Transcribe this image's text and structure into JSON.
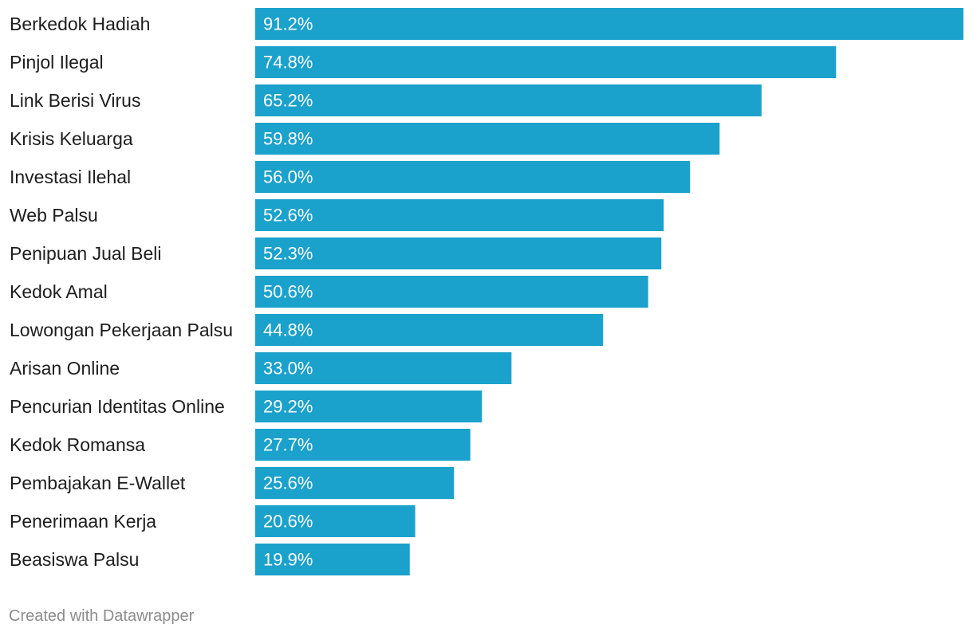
{
  "chart_data": {
    "type": "bar",
    "orientation": "horizontal",
    "categories": [
      "Berkedok Hadiah",
      "Pinjol Ilegal",
      "Link Berisi Virus",
      "Krisis Keluarga",
      "Investasi Ilehal",
      "Web Palsu",
      "Penipuan Jual Beli",
      "Kedok Amal",
      "Lowongan Pekerjaan Palsu",
      "Arisan Online",
      "Pencurian Identitas Online",
      "Kedok Romansa",
      "Pembajakan E-Wallet",
      "Penerimaan Kerja",
      "Beasiswa Palsu"
    ],
    "values": [
      91.2,
      74.8,
      65.2,
      59.8,
      56.0,
      52.6,
      52.3,
      50.6,
      44.8,
      33.0,
      29.2,
      27.7,
      25.6,
      20.6,
      19.9
    ],
    "value_labels": [
      "91.2%",
      "74.8%",
      "65.2%",
      "59.8%",
      "56.0%",
      "52.6%",
      "52.3%",
      "50.6%",
      "44.8%",
      "33.0%",
      "29.2%",
      "27.7%",
      "25.6%",
      "20.6%",
      "19.9%"
    ],
    "unit": "%",
    "xlim": [
      0,
      91.2
    ],
    "bar_color": "#1aa1cc",
    "grid": false,
    "legend": "none"
  },
  "credit": "Created with Datawrapper"
}
